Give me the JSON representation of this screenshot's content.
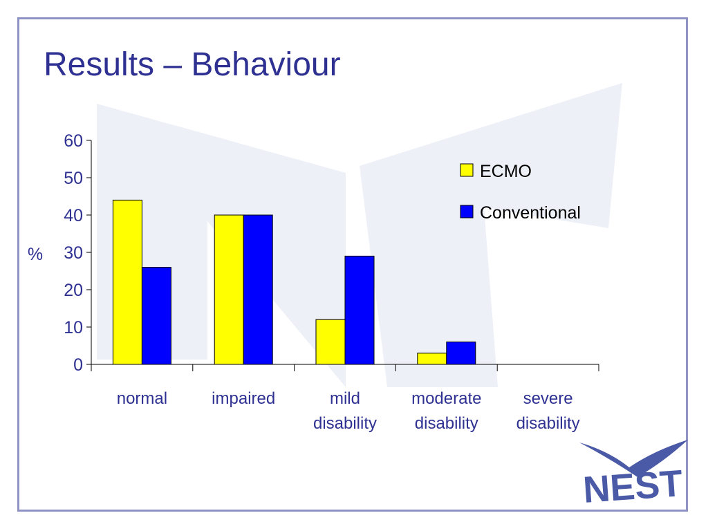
{
  "slide": {
    "title": "Results – Behaviour",
    "logo_text": "NEST",
    "colors": {
      "title": "#2e3192",
      "frame": "#8e93c4",
      "tick_label": "#2e3192",
      "watermark": "#eef0f7",
      "logo": "#4b5aa6"
    }
  },
  "chart_data": {
    "type": "bar",
    "title": "",
    "xlabel": "",
    "ylabel": "%",
    "ylim": [
      0,
      60
    ],
    "yticks": [
      0,
      10,
      20,
      30,
      40,
      50,
      60
    ],
    "grid": false,
    "legend_position": "top-right",
    "categories": [
      [
        "normal"
      ],
      [
        "impaired"
      ],
      [
        "mild",
        "disability"
      ],
      [
        "moderate",
        "disability"
      ],
      [
        "severe",
        "disability"
      ]
    ],
    "series": [
      {
        "name": "ECMO",
        "color": "#ffff00",
        "values": [
          44,
          40,
          12,
          3,
          0
        ]
      },
      {
        "name": "Conventional",
        "color": "#0000ff",
        "values": [
          26,
          40,
          29,
          6,
          0
        ]
      }
    ]
  }
}
